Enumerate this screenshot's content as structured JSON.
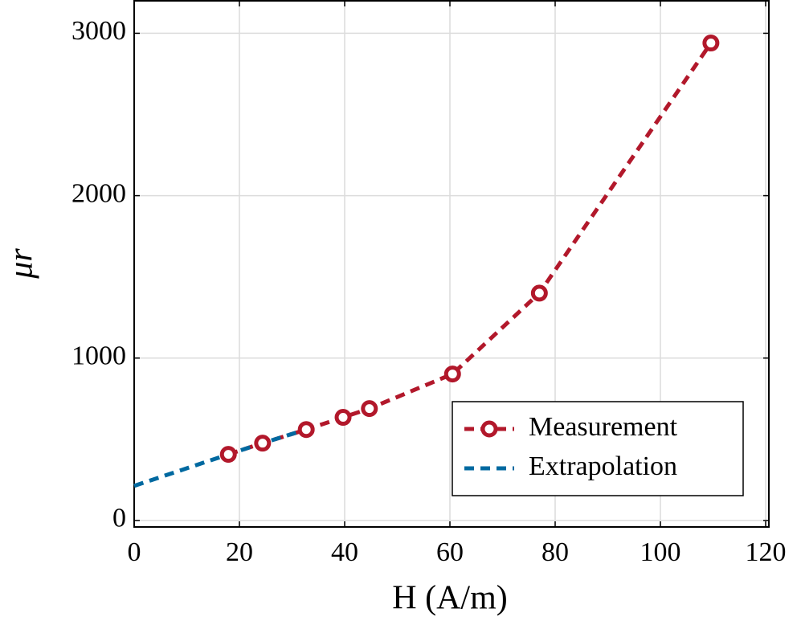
{
  "chart_data": {
    "type": "line",
    "x_label": "H (A/m)",
    "y_label": "μr",
    "xlim": [
      0,
      120
    ],
    "ylim": [
      -40,
      3200
    ],
    "xticks": [
      0,
      20,
      40,
      60,
      80,
      100,
      120
    ],
    "yticks": [
      0,
      1000,
      2000,
      3000
    ],
    "grid": true,
    "legend": "lower right",
    "series": [
      {
        "name": "Measurement",
        "color": "#b2182b",
        "marker": "circle",
        "dashed": true,
        "x": [
          17.9,
          24.4,
          32.7,
          39.7,
          44.7,
          60.5,
          77,
          109.6
        ],
        "values": [
          407,
          476,
          560,
          635,
          689,
          902,
          1400,
          2940
        ]
      },
      {
        "name": "Extrapolation",
        "color": "#0069a0",
        "marker": null,
        "dashed": true,
        "x": [
          0,
          17.9,
          24.4,
          32.7
        ],
        "values": [
          213,
          407,
          476,
          560
        ]
      }
    ]
  }
}
